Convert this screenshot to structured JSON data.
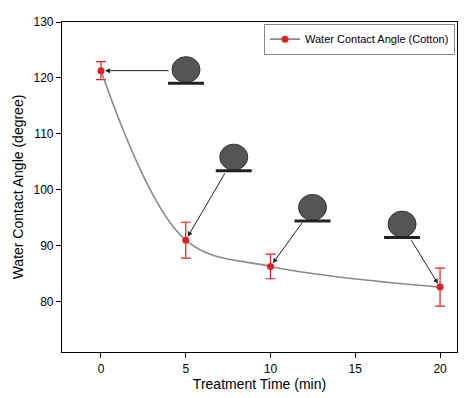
{
  "chart_data": {
    "type": "line",
    "x": [
      0,
      5,
      10,
      20
    ],
    "series": [
      {
        "name": "Water Contact Angle (Cotton)",
        "color": "#e02020",
        "values": [
          121.3,
          91.0,
          86.3,
          82.6
        ],
        "errors": [
          1.6,
          3.2,
          2.2,
          3.4
        ],
        "marker": "circle",
        "line_style": "smooth"
      }
    ],
    "x_label": "Treatment Time (min)",
    "y_label": "Water Contact Angle (degree)",
    "xlim": [
      -2.3,
      21
    ],
    "ylim": [
      71,
      130
    ],
    "xticks": [
      0,
      5,
      10,
      15,
      20
    ],
    "yticks": [
      80,
      90,
      100,
      110,
      120,
      130
    ],
    "legend": "upper right",
    "grid": false
  }
}
